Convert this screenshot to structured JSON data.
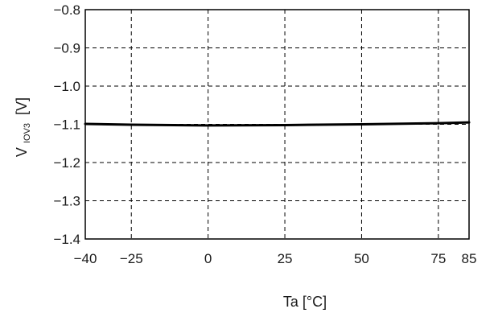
{
  "chart_data": {
    "type": "line",
    "x": [
      -40,
      -25,
      0,
      25,
      50,
      75,
      85
    ],
    "series": [
      {
        "values": [
          -1.099,
          -1.101,
          -1.103,
          -1.102,
          -1.1,
          -1.097,
          -1.095
        ],
        "color": "#000000"
      }
    ],
    "xlabel": "Ta [°C]",
    "ylabel": {
      "symbol": "V",
      "subscript": "IOV3",
      "unit": "[V]"
    },
    "xlim": [
      -40,
      85
    ],
    "ylim": [
      -1.4,
      -0.8
    ],
    "xticks": [
      -40,
      -25,
      0,
      25,
      50,
      75,
      85
    ],
    "xtick_labels": [
      "−40",
      "−25",
      "0",
      "25",
      "50",
      "75",
      "85"
    ],
    "yticks": [
      -0.8,
      -0.9,
      -1.0,
      -1.1,
      -1.2,
      -1.3,
      -1.4
    ],
    "ytick_labels": [
      "−0.8",
      "−0.9",
      "−1.0",
      "−1.1",
      "−1.2",
      "−1.3",
      "−1.4"
    ],
    "grid": true
  }
}
